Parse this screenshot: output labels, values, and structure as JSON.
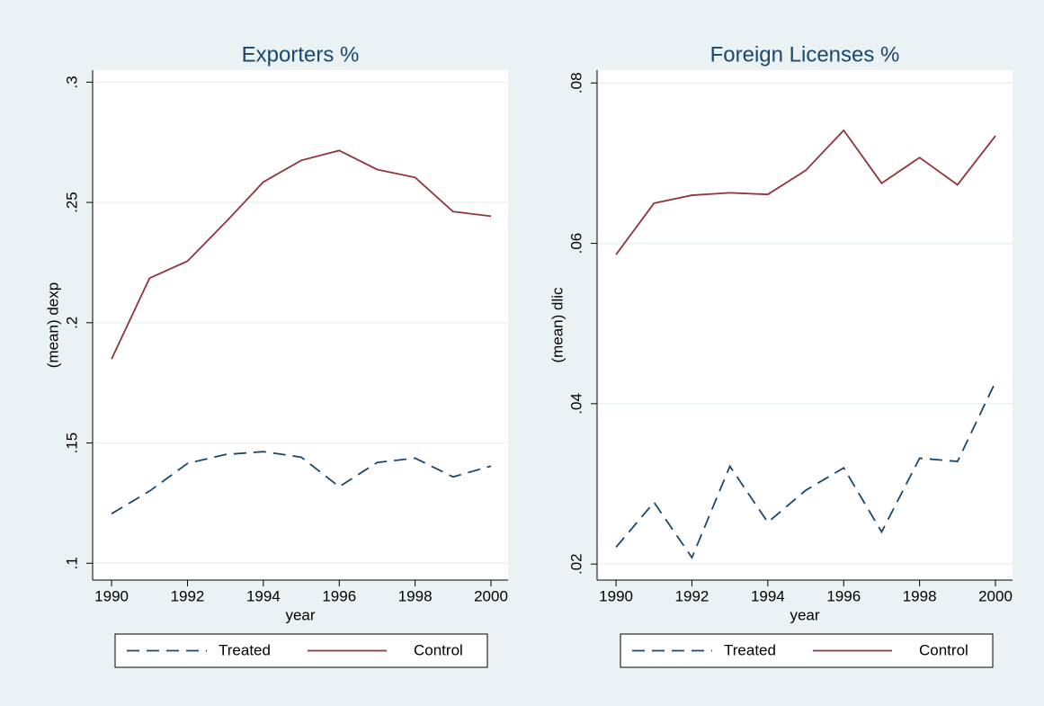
{
  "chart_data": [
    {
      "type": "line",
      "title": "Exporters %",
      "x_label": "year",
      "y_label": "(mean) dexp",
      "x": [
        1990,
        1991,
        1992,
        1993,
        1994,
        1995,
        1996,
        1997,
        1998,
        1999,
        2000
      ],
      "series": [
        {
          "name": "Treated",
          "color": "#1a476f",
          "dash": true,
          "values": [
            0.1206,
            0.13,
            0.1415,
            0.1452,
            0.1464,
            0.1441,
            0.1318,
            0.1419,
            0.1437,
            0.1359,
            0.1404
          ]
        },
        {
          "name": "Control",
          "color": "#90353b",
          "dash": false,
          "values": [
            0.1849,
            0.2185,
            0.2256,
            0.2417,
            0.2585,
            0.2675,
            0.2716,
            0.2637,
            0.2604,
            0.2462,
            0.2443
          ]
        }
      ],
      "xlim": [
        1989.5,
        2000.45
      ],
      "ylim": [
        0.093,
        0.305
      ],
      "xticks": [
        1990,
        1992,
        1994,
        1996,
        1998,
        2000
      ],
      "yticks": [
        {
          "value": 0.1,
          "label": ".1"
        },
        {
          "value": 0.15,
          "label": ".15"
        },
        {
          "value": 0.2,
          "label": ".2"
        },
        {
          "value": 0.25,
          "label": ".25"
        },
        {
          "value": 0.3,
          "label": ".3"
        }
      ],
      "grid": true,
      "legend": "bottom"
    },
    {
      "type": "line",
      "title": "Foreign Licenses %",
      "x_label": "year",
      "y_label": "(mean) dlic",
      "x": [
        1990,
        1991,
        1992,
        1993,
        1994,
        1995,
        1996,
        1997,
        1998,
        1999,
        2000
      ],
      "series": [
        {
          "name": "Treated",
          "color": "#1a476f",
          "dash": true,
          "values": [
            0.0221,
            0.0277,
            0.0208,
            0.0322,
            0.0252,
            0.0292,
            0.032,
            0.024,
            0.0332,
            0.0328,
            0.0427
          ]
        },
        {
          "name": "Control",
          "color": "#90353b",
          "dash": false,
          "values": [
            0.0586,
            0.065,
            0.066,
            0.0663,
            0.0661,
            0.0691,
            0.0741,
            0.0675,
            0.0707,
            0.0673,
            0.0734
          ]
        }
      ],
      "xlim": [
        1989.5,
        2000.45
      ],
      "ylim": [
        0.018,
        0.0816
      ],
      "xticks": [
        1990,
        1992,
        1994,
        1996,
        1998,
        2000
      ],
      "yticks": [
        {
          "value": 0.02,
          "label": ".02"
        },
        {
          "value": 0.04,
          "label": ".04"
        },
        {
          "value": 0.06,
          "label": ".06"
        },
        {
          "value": 0.08,
          "label": ".08"
        }
      ],
      "grid": true,
      "legend": "bottom"
    }
  ]
}
